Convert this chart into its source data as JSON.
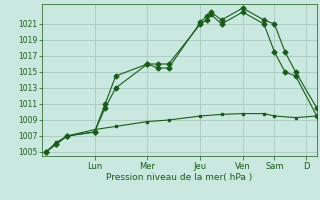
{
  "background_color": "#c8e8e0",
  "grid_color": "#a8c8c0",
  "line_color": "#1a5c1a",
  "ylabel": "Pression niveau de la mer( hPa )",
  "ylim": [
    1004.5,
    1023.5
  ],
  "yticks": [
    1005,
    1007,
    1009,
    1011,
    1013,
    1015,
    1017,
    1019,
    1021
  ],
  "xlim": [
    0,
    13.0
  ],
  "x_day_labels": [
    "Lun",
    "Mer",
    "Jeu",
    "Ven",
    "Sam",
    "D"
  ],
  "x_day_positions": [
    2.5,
    5.0,
    7.5,
    9.5,
    11.0,
    12.5
  ],
  "line1_x": [
    0.2,
    0.7,
    1.2,
    2.5,
    3.0,
    3.5,
    5.0,
    5.5,
    6.0,
    7.5,
    7.8,
    8.0,
    8.5,
    9.5,
    10.5,
    11.0,
    11.5,
    12.0,
    13.0
  ],
  "line1_y": [
    1005.0,
    1006.0,
    1007.0,
    1007.5,
    1010.5,
    1013.0,
    1016.0,
    1016.0,
    1016.0,
    1021.0,
    1021.5,
    1022.2,
    1021.0,
    1022.5,
    1021.0,
    1017.5,
    1015.0,
    1014.5,
    1009.5
  ],
  "line2_x": [
    0.2,
    0.7,
    1.2,
    2.5,
    3.0,
    3.5,
    5.0,
    5.5,
    6.0,
    7.5,
    7.8,
    8.0,
    8.5,
    9.5,
    10.5,
    11.0,
    11.5,
    12.0,
    13.0
  ],
  "line2_y": [
    1005.0,
    1006.0,
    1007.0,
    1007.5,
    1011.0,
    1014.5,
    1016.0,
    1015.5,
    1015.5,
    1021.2,
    1022.0,
    1022.5,
    1021.5,
    1023.0,
    1021.5,
    1021.0,
    1017.5,
    1015.0,
    1010.5
  ],
  "line3_x": [
    0.2,
    0.7,
    1.2,
    2.5,
    3.5,
    5.0,
    6.0,
    7.5,
    8.5,
    9.5,
    10.5,
    11.0,
    12.0,
    13.0
  ],
  "line3_y": [
    1005.0,
    1006.2,
    1007.0,
    1007.8,
    1008.2,
    1008.8,
    1009.0,
    1009.5,
    1009.7,
    1009.8,
    1009.8,
    1009.5,
    1009.3,
    1009.5
  ]
}
